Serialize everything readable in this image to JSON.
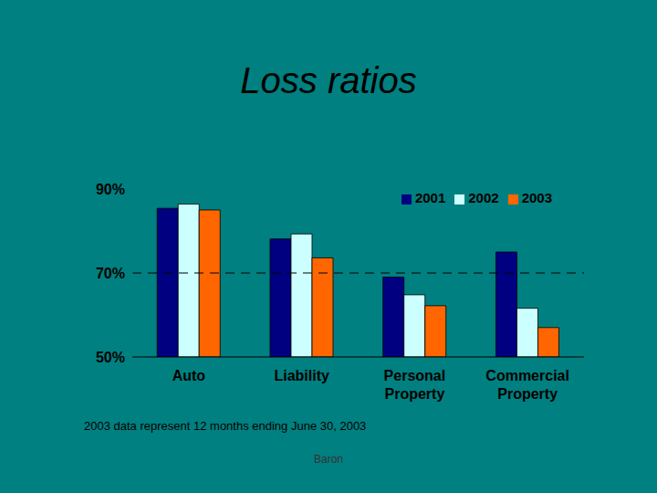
{
  "chart_data": {
    "type": "bar",
    "title": "Loss ratios",
    "categories": [
      "Auto",
      "Liability",
      "Personal Property",
      "Commercial Property"
    ],
    "series": [
      {
        "name": "2001",
        "color": "#000080",
        "values": [
          85.4,
          78.1,
          69.0,
          75.0
        ]
      },
      {
        "name": "2002",
        "color": "#ccffff",
        "values": [
          86.4,
          79.3,
          64.8,
          61.6
        ]
      },
      {
        "name": "2003",
        "color": "#ff6600",
        "values": [
          85.0,
          73.6,
          62.2,
          57.0
        ]
      }
    ],
    "ylim": [
      50,
      90
    ],
    "yticks": [
      {
        "value": 50,
        "label": "50%"
      },
      {
        "value": 70,
        "label": "70%"
      },
      {
        "value": 90,
        "label": "90%"
      }
    ],
    "threshold": 70,
    "grid": false,
    "legend": "upper right",
    "annotations": [
      "2003 data represent 12 months ending June 30, 2003",
      "Baron"
    ]
  }
}
